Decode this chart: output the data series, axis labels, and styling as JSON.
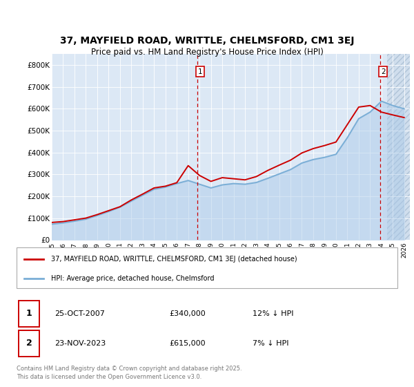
{
  "title": "37, MAYFIELD ROAD, WRITTLE, CHELMSFORD, CM1 3EJ",
  "subtitle": "Price paid vs. HM Land Registry's House Price Index (HPI)",
  "legend_label_red": "37, MAYFIELD ROAD, WRITTLE, CHELMSFORD, CM1 3EJ (detached house)",
  "legend_label_blue": "HPI: Average price, detached house, Chelmsford",
  "annotation1": {
    "label": "1",
    "date_str": "25-OCT-2007",
    "price_str": "£340,000",
    "note": "12% ↓ HPI"
  },
  "annotation2": {
    "label": "2",
    "date_str": "23-NOV-2023",
    "price_str": "£615,000",
    "note": "7% ↓ HPI"
  },
  "footnote": "Contains HM Land Registry data © Crown copyright and database right 2025.\nThis data is licensed under the Open Government Licence v3.0.",
  "plot_bg_color": "#dce8f5",
  "hatch_color": "#c8d8e8",
  "red_color": "#cc0000",
  "blue_color": "#7aaed6",
  "blue_fill_color": "#a8c8e8",
  "vline_color": "#cc0000",
  "ylim": [
    0,
    850000
  ],
  "yticks": [
    0,
    100000,
    200000,
    300000,
    400000,
    500000,
    600000,
    700000,
    800000
  ],
  "ytick_labels": [
    "£0",
    "£100K",
    "£200K",
    "£300K",
    "£400K",
    "£500K",
    "£600K",
    "£700K",
    "£800K"
  ],
  "hpi_years": [
    1995,
    1996,
    1997,
    1998,
    1999,
    2000,
    2001,
    2002,
    2003,
    2004,
    2005,
    2006,
    2007,
    2008,
    2009,
    2010,
    2011,
    2012,
    2013,
    2014,
    2015,
    2016,
    2017,
    2018,
    2019,
    2020,
    2021,
    2022,
    2023,
    2024,
    2025,
    2026
  ],
  "hpi_values": [
    72000,
    78000,
    86000,
    95000,
    112000,
    130000,
    150000,
    178000,
    205000,
    232000,
    242000,
    258000,
    272000,
    255000,
    238000,
    252000,
    258000,
    255000,
    263000,
    282000,
    302000,
    322000,
    352000,
    368000,
    378000,
    392000,
    468000,
    555000,
    585000,
    635000,
    615000,
    600000
  ],
  "red_years": [
    1995,
    1996,
    1997,
    1998,
    1999,
    2000,
    2001,
    2002,
    2003,
    2004,
    2005,
    2006,
    2007,
    2008,
    2009,
    2010,
    2011,
    2012,
    2013,
    2014,
    2015,
    2016,
    2017,
    2018,
    2019,
    2020,
    2021,
    2022,
    2023,
    2024,
    2025,
    2026
  ],
  "red_values": [
    80000,
    84000,
    92000,
    100000,
    116000,
    134000,
    152000,
    183000,
    210000,
    238000,
    246000,
    262000,
    340000,
    295000,
    268000,
    285000,
    280000,
    275000,
    290000,
    318000,
    342000,
    365000,
    398000,
    418000,
    432000,
    448000,
    528000,
    608000,
    615000,
    585000,
    572000,
    560000
  ],
  "marker1_x": 2007.82,
  "marker1_y": 340000,
  "marker2_x": 2023.9,
  "marker2_y": 615000,
  "xmin": 1995,
  "xmax": 2026.5
}
